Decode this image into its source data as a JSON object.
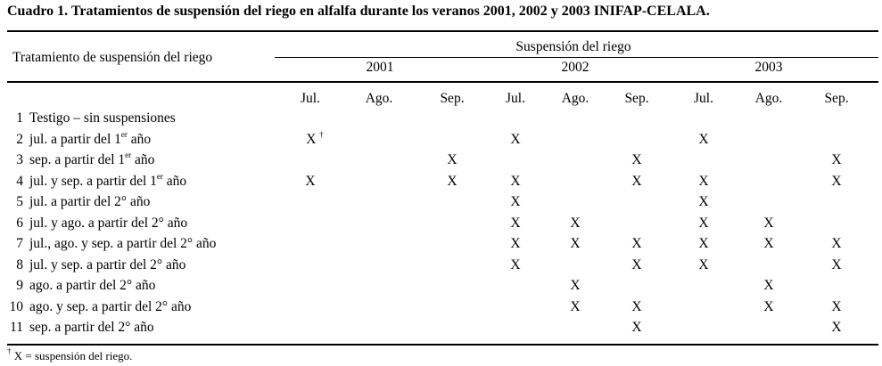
{
  "title": "Cuadro 1. Tratamientos de suspensión del riego en alfalfa durante los veranos 2001, 2002 y 2003 INIFAP-CELALA.",
  "header": {
    "row_header": "Tratamiento de suspensión del riego",
    "group_header": "Suspensión del riego",
    "years": [
      "2001",
      "2002",
      "2003"
    ],
    "months": [
      "Jul.",
      "Ago.",
      "Sep.",
      "Jul.",
      "Ago.",
      "Sep.",
      "Jul.",
      "Ago.",
      "Sep."
    ]
  },
  "rows": [
    {
      "num": "1",
      "label": "Testigo – sin suspensiones",
      "sup": "",
      "suffix": "",
      "marks": [
        "",
        "",
        "",
        "",
        "",
        "",
        "",
        "",
        ""
      ]
    },
    {
      "num": "2",
      "label": "jul. a partir del 1",
      "sup": "er",
      "suffix": " año",
      "marks": [
        "X",
        "",
        "",
        "X",
        "",
        "",
        "X",
        "",
        ""
      ]
    },
    {
      "num": "3",
      "label": "sep. a partir del 1",
      "sup": "er",
      "suffix": " año",
      "marks": [
        "",
        "",
        "X",
        "",
        "",
        "X",
        "",
        "",
        "X"
      ]
    },
    {
      "num": "4",
      "label": "jul. y sep. a partir del 1",
      "sup": "er",
      "suffix": " año",
      "marks": [
        "X",
        "",
        "X",
        "X",
        "",
        "X",
        "X",
        "",
        "X"
      ]
    },
    {
      "num": "5",
      "label": "jul. a partir del 2° año",
      "sup": "",
      "suffix": "",
      "marks": [
        "",
        "",
        "",
        "X",
        "",
        "",
        "X",
        "",
        ""
      ]
    },
    {
      "num": "6",
      "label": "jul. y ago. a partir del 2° año",
      "sup": "",
      "suffix": "",
      "marks": [
        "",
        "",
        "",
        "X",
        "X",
        "",
        "X",
        "X",
        ""
      ]
    },
    {
      "num": "7",
      "label": "jul., ago. y sep. a partir del 2° año",
      "sup": "",
      "suffix": "",
      "marks": [
        "",
        "",
        "",
        "X",
        "X",
        "X",
        "X",
        "X",
        "X"
      ]
    },
    {
      "num": "8",
      "label": "jul. y sep. a partir del 2° año",
      "sup": "",
      "suffix": "",
      "marks": [
        "",
        "",
        "",
        "X",
        "",
        "X",
        "X",
        "",
        "X"
      ]
    },
    {
      "num": "9",
      "label": "ago. a partir del 2° año",
      "sup": "",
      "suffix": "",
      "marks": [
        "",
        "",
        "",
        "",
        "X",
        "",
        "",
        "X",
        ""
      ]
    },
    {
      "num": "10",
      "label": "ago. y sep. a partir del 2° año",
      "sup": "",
      "suffix": "",
      "marks": [
        "",
        "",
        "",
        "",
        "X",
        "X",
        "",
        "X",
        "X"
      ]
    },
    {
      "num": "11",
      "label": "sep. a partir del 2° año",
      "sup": "",
      "suffix": "",
      "marks": [
        "",
        "",
        "",
        "",
        "",
        "X",
        "",
        "",
        "X"
      ]
    }
  ],
  "first_mark_footnote": "†",
  "footnote": {
    "symbol": "†",
    "text": "X = suspensión del riego."
  }
}
